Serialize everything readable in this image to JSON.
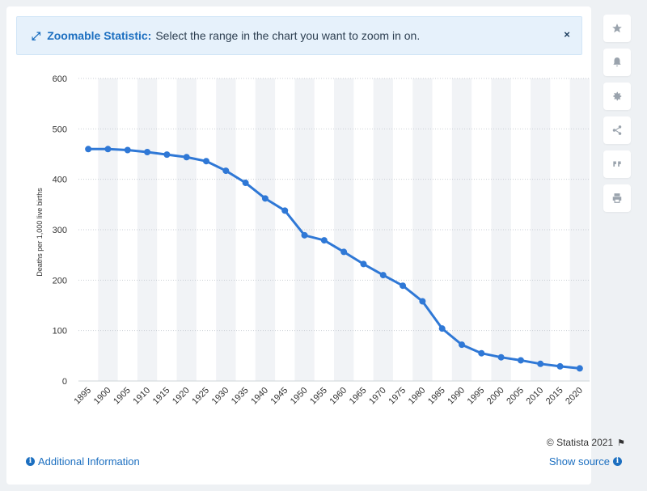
{
  "banner": {
    "icon": "expand-arrows-icon",
    "title": "Zoomable Statistic:",
    "text": "Select the range in the chart you want to zoom in on.",
    "close_label": "×"
  },
  "sidebar": {
    "buttons": [
      "star-icon",
      "bell-icon",
      "gear-icon",
      "share-icon",
      "quote-icon",
      "print-icon"
    ]
  },
  "footer": {
    "credit": "© Statista 2021",
    "additional_info": "Additional Information",
    "show_source": "Show source"
  },
  "colors": {
    "line": "#2f78d6",
    "accent": "#1c6fc0",
    "band": "#f1f3f6",
    "grid": "#c9ced4"
  },
  "chart_data": {
    "type": "line",
    "ylabel": "Deaths per 1,000 live births",
    "xlabel": "",
    "ylim": [
      0,
      600
    ],
    "yticks": [
      0,
      100,
      200,
      300,
      400,
      500,
      600
    ],
    "grid": true,
    "categories": [
      "1895",
      "1900",
      "1905",
      "1910",
      "1915",
      "1920",
      "1925",
      "1930",
      "1935",
      "1940",
      "1945",
      "1950",
      "1955",
      "1960",
      "1965",
      "1970",
      "1975",
      "1980",
      "1985",
      "1990",
      "1995",
      "2000",
      "2005",
      "2010",
      "2015",
      "2020"
    ],
    "series": [
      {
        "values": [
          460,
          460,
          458,
          454,
          449,
          444,
          436,
          417,
          393,
          362,
          338,
          289,
          279,
          256,
          232,
          210,
          189,
          158,
          104,
          72,
          55,
          47,
          41,
          34,
          29,
          25
        ]
      }
    ]
  }
}
